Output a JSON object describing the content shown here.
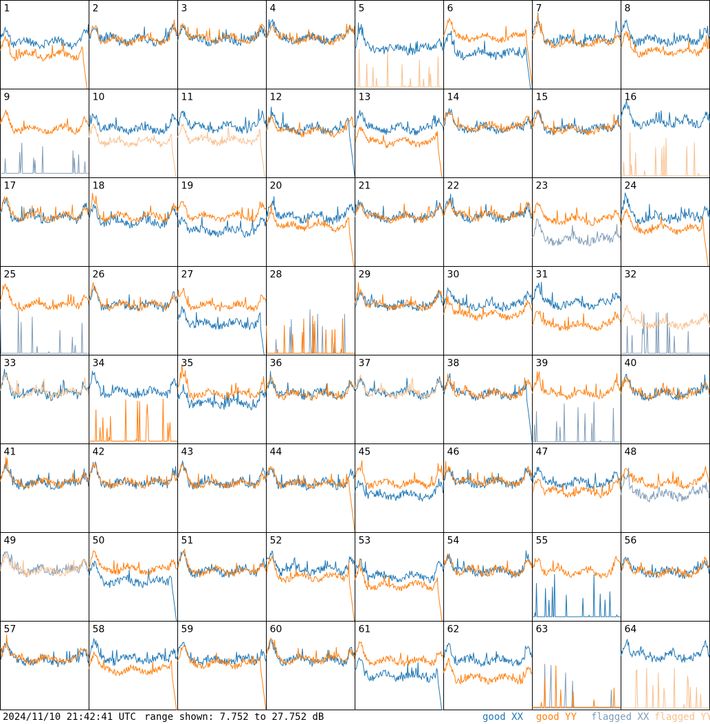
{
  "footer": {
    "timestamp": "2024/11/10 21:42:41 UTC",
    "range_text": "range shown: 7.752 to 27.752 dB"
  },
  "legend": {
    "good_xx": "good XX",
    "good_yy": "good YY",
    "flagged_xx": "flagged XX",
    "flagged_yy": "flagged YY"
  },
  "colors": {
    "good_xx": "#1f77b4",
    "good_yy": "#ff7f0e",
    "flagged_xx": "#7f9bb7",
    "flagged_yy": "#f8c08e",
    "frame": "#000000"
  },
  "chart_data": {
    "type": "line",
    "title": "",
    "xlabel": "",
    "ylabel": "",
    "ylim_db": [
      7.752,
      27.752
    ],
    "grid_rows": 8,
    "grid_cols": 8,
    "panels": [
      {
        "label": "1",
        "xx": "good",
        "yy": "good",
        "xx_level": 0.52,
        "yy_level": 0.38,
        "xx_drop": false,
        "yy_drop": true
      },
      {
        "label": "2",
        "xx": "good",
        "yy": "good",
        "xx_level": 0.55,
        "yy_level": 0.55,
        "xx_drop": false,
        "yy_drop": false
      },
      {
        "label": "3",
        "xx": "good",
        "yy": "good",
        "xx_level": 0.55,
        "yy_level": 0.57,
        "xx_drop": false,
        "yy_drop": false
      },
      {
        "label": "4",
        "xx": "good",
        "yy": "good",
        "xx_level": 0.57,
        "yy_level": 0.56,
        "xx_drop": false,
        "yy_drop": false
      },
      {
        "label": "5",
        "xx": "good",
        "yy": "flagged",
        "xx_level": 0.45,
        "yy_level": 0.02,
        "xx_drop": false,
        "yy_drop": false
      },
      {
        "label": "6",
        "xx": "good",
        "yy": "good",
        "xx_level": 0.4,
        "yy_level": 0.58,
        "xx_drop": true,
        "yy_drop": true
      },
      {
        "label": "7",
        "xx": "good",
        "yy": "good",
        "xx_level": 0.55,
        "yy_level": 0.52,
        "xx_drop": false,
        "yy_drop": false
      },
      {
        "label": "8",
        "xx": "good",
        "yy": "good",
        "xx_level": 0.55,
        "yy_level": 0.42,
        "xx_drop": false,
        "yy_drop": false
      },
      {
        "label": "9",
        "xx": "flagged",
        "yy": "good",
        "xx_level": 0.05,
        "yy_level": 0.55,
        "xx_drop": false,
        "yy_drop": false
      },
      {
        "label": "10",
        "xx": "good",
        "yy": "flagged",
        "xx_level": 0.55,
        "yy_level": 0.4,
        "xx_drop": false,
        "yy_drop": true
      },
      {
        "label": "11",
        "xx": "good",
        "yy": "flagged",
        "xx_level": 0.57,
        "yy_level": 0.42,
        "xx_drop": false,
        "yy_drop": true
      },
      {
        "label": "12",
        "xx": "good",
        "yy": "good",
        "xx_level": 0.55,
        "yy_level": 0.52,
        "xx_drop": true,
        "yy_drop": false
      },
      {
        "label": "13",
        "xx": "good",
        "yy": "good",
        "xx_level": 0.55,
        "yy_level": 0.4,
        "xx_drop": false,
        "yy_drop": true
      },
      {
        "label": "14",
        "xx": "good",
        "yy": "good",
        "xx_level": 0.56,
        "yy_level": 0.57,
        "xx_drop": false,
        "yy_drop": false
      },
      {
        "label": "15",
        "xx": "good",
        "yy": "good",
        "xx_level": 0.55,
        "yy_level": 0.54,
        "xx_drop": false,
        "yy_drop": false
      },
      {
        "label": "16",
        "xx": "good",
        "yy": "flagged",
        "xx_level": 0.62,
        "yy_level": 0.02,
        "xx_drop": false,
        "yy_drop": false
      },
      {
        "label": "17",
        "xx": "good",
        "yy": "good",
        "xx_level": 0.55,
        "yy_level": 0.56,
        "xx_drop": false,
        "yy_drop": false
      },
      {
        "label": "18",
        "xx": "good",
        "yy": "good",
        "xx_level": 0.5,
        "yy_level": 0.56,
        "xx_drop": false,
        "yy_drop": false
      },
      {
        "label": "19",
        "xx": "good",
        "yy": "good",
        "xx_level": 0.4,
        "yy_level": 0.56,
        "xx_drop": false,
        "yy_drop": false
      },
      {
        "label": "20",
        "xx": "good",
        "yy": "good",
        "xx_level": 0.55,
        "yy_level": 0.45,
        "xx_drop": false,
        "yy_drop": true
      },
      {
        "label": "21",
        "xx": "good",
        "yy": "good",
        "xx_level": 0.56,
        "yy_level": 0.55,
        "xx_drop": false,
        "yy_drop": false
      },
      {
        "label": "22",
        "xx": "good",
        "yy": "good",
        "xx_level": 0.56,
        "yy_level": 0.57,
        "xx_drop": false,
        "yy_drop": false
      },
      {
        "label": "23",
        "xx": "flagged",
        "yy": "good",
        "xx_level": 0.3,
        "yy_level": 0.52,
        "xx_drop": false,
        "yy_drop": false
      },
      {
        "label": "24",
        "xx": "good",
        "yy": "good",
        "xx_level": 0.55,
        "yy_level": 0.42,
        "xx_drop": false,
        "yy_drop": true
      },
      {
        "label": "25",
        "xx": "flagged",
        "yy": "good",
        "xx_level": 0.02,
        "yy_level": 0.56,
        "xx_drop": false,
        "yy_drop": false
      },
      {
        "label": "26",
        "xx": "good",
        "yy": "good",
        "xx_level": 0.56,
        "yy_level": 0.56,
        "xx_drop": false,
        "yy_drop": false
      },
      {
        "label": "27",
        "xx": "good",
        "yy": "good",
        "xx_level": 0.35,
        "yy_level": 0.55,
        "xx_drop": true,
        "yy_drop": false
      },
      {
        "label": "28",
        "xx": "flagged",
        "yy": "good",
        "xx_level": 0.02,
        "yy_level": 0.02,
        "xx_drop": false,
        "yy_drop": false
      },
      {
        "label": "29",
        "xx": "good",
        "yy": "good",
        "xx_level": 0.56,
        "yy_level": 0.56,
        "xx_drop": false,
        "yy_drop": false
      },
      {
        "label": "30",
        "xx": "good",
        "yy": "good",
        "xx_level": 0.56,
        "yy_level": 0.45,
        "xx_drop": false,
        "yy_drop": false
      },
      {
        "label": "31",
        "xx": "good",
        "yy": "good",
        "xx_level": 0.58,
        "yy_level": 0.33,
        "xx_drop": false,
        "yy_drop": false
      },
      {
        "label": "32",
        "xx": "flagged",
        "yy": "flagged",
        "xx_level": 0.02,
        "yy_level": 0.35,
        "xx_drop": false,
        "yy_drop": false
      },
      {
        "label": "33",
        "xx": "good",
        "yy": "flagged",
        "xx_level": 0.56,
        "yy_level": 0.57,
        "xx_drop": false,
        "yy_drop": false
      },
      {
        "label": "34",
        "xx": "good",
        "yy": "good",
        "xx_level": 0.58,
        "yy_level": 0.03,
        "xx_drop": false,
        "yy_drop": false
      },
      {
        "label": "35",
        "xx": "good",
        "yy": "good",
        "xx_level": 0.45,
        "yy_level": 0.56,
        "xx_drop": false,
        "yy_drop": false
      },
      {
        "label": "36",
        "xx": "good",
        "yy": "good",
        "xx_level": 0.56,
        "yy_level": 0.55,
        "xx_drop": false,
        "yy_drop": false
      },
      {
        "label": "37",
        "xx": "good",
        "yy": "flagged",
        "xx_level": 0.57,
        "yy_level": 0.57,
        "xx_drop": false,
        "yy_drop": false
      },
      {
        "label": "38",
        "xx": "good",
        "yy": "good",
        "xx_level": 0.56,
        "yy_level": 0.56,
        "xx_drop": true,
        "yy_drop": false
      },
      {
        "label": "39",
        "xx": "flagged",
        "yy": "good",
        "xx_level": 0.02,
        "yy_level": 0.56,
        "xx_drop": false,
        "yy_drop": false
      },
      {
        "label": "40",
        "xx": "good",
        "yy": "good",
        "xx_level": 0.56,
        "yy_level": 0.56,
        "xx_drop": false,
        "yy_drop": false
      },
      {
        "label": "41",
        "xx": "good",
        "yy": "good",
        "xx_level": 0.55,
        "yy_level": 0.56,
        "xx_drop": false,
        "yy_drop": false
      },
      {
        "label": "42",
        "xx": "good",
        "yy": "good",
        "xx_level": 0.56,
        "yy_level": 0.56,
        "xx_drop": false,
        "yy_drop": false
      },
      {
        "label": "43",
        "xx": "good",
        "yy": "good",
        "xx_level": 0.56,
        "yy_level": 0.55,
        "xx_drop": false,
        "yy_drop": false
      },
      {
        "label": "44",
        "xx": "good",
        "yy": "good",
        "xx_level": 0.55,
        "yy_level": 0.55,
        "xx_drop": false,
        "yy_drop": true
      },
      {
        "label": "45",
        "xx": "good",
        "yy": "good",
        "xx_level": 0.42,
        "yy_level": 0.55,
        "xx_drop": false,
        "yy_drop": false
      },
      {
        "label": "46",
        "xx": "good",
        "yy": "good",
        "xx_level": 0.56,
        "yy_level": 0.57,
        "xx_drop": false,
        "yy_drop": false
      },
      {
        "label": "47",
        "xx": "good",
        "yy": "good",
        "xx_level": 0.55,
        "yy_level": 0.45,
        "xx_drop": false,
        "yy_drop": false
      },
      {
        "label": "48",
        "xx": "flagged",
        "yy": "good",
        "xx_level": 0.42,
        "yy_level": 0.55,
        "xx_drop": false,
        "yy_drop": false
      },
      {
        "label": "49",
        "xx": "flagged",
        "yy": "flagged",
        "xx_level": 0.57,
        "yy_level": 0.56,
        "xx_drop": false,
        "yy_drop": false
      },
      {
        "label": "50",
        "xx": "good",
        "yy": "good",
        "xx_level": 0.45,
        "yy_level": 0.58,
        "xx_drop": true,
        "yy_drop": false
      },
      {
        "label": "51",
        "xx": "good",
        "yy": "good",
        "xx_level": 0.56,
        "yy_level": 0.56,
        "xx_drop": false,
        "yy_drop": false
      },
      {
        "label": "52",
        "xx": "good",
        "yy": "good",
        "xx_level": 0.58,
        "yy_level": 0.5,
        "xx_drop": false,
        "yy_drop": true
      },
      {
        "label": "53",
        "xx": "good",
        "yy": "good",
        "xx_level": 0.5,
        "yy_level": 0.4,
        "xx_drop": false,
        "yy_drop": true
      },
      {
        "label": "54",
        "xx": "good",
        "yy": "good",
        "xx_level": 0.56,
        "yy_level": 0.56,
        "xx_drop": false,
        "yy_drop": false
      },
      {
        "label": "55",
        "xx": "good",
        "yy": "good",
        "xx_level": 0.05,
        "yy_level": 0.55,
        "xx_drop": false,
        "yy_drop": false
      },
      {
        "label": "56",
        "xx": "good",
        "yy": "good",
        "xx_level": 0.55,
        "yy_level": 0.55,
        "xx_drop": false,
        "yy_drop": false
      },
      {
        "label": "57",
        "xx": "good",
        "yy": "good",
        "xx_level": 0.55,
        "yy_level": 0.57,
        "xx_drop": false,
        "yy_drop": false
      },
      {
        "label": "58",
        "xx": "good",
        "yy": "good",
        "xx_level": 0.57,
        "yy_level": 0.45,
        "xx_drop": false,
        "yy_drop": true
      },
      {
        "label": "59",
        "xx": "good",
        "yy": "good",
        "xx_level": 0.56,
        "yy_level": 0.52,
        "xx_drop": false,
        "yy_drop": true
      },
      {
        "label": "60",
        "xx": "good",
        "yy": "good",
        "xx_level": 0.56,
        "yy_level": 0.57,
        "xx_drop": false,
        "yy_drop": false
      },
      {
        "label": "61",
        "xx": "good",
        "yy": "good",
        "xx_level": 0.38,
        "yy_level": 0.55,
        "xx_drop": true,
        "yy_drop": false
      },
      {
        "label": "62",
        "xx": "good",
        "yy": "good",
        "xx_level": 0.55,
        "yy_level": 0.35,
        "xx_drop": false,
        "yy_drop": false
      },
      {
        "label": "63",
        "xx": "flagged",
        "yy": "good",
        "xx_level": 0.02,
        "yy_level": 0.03,
        "xx_drop": false,
        "yy_drop": false
      },
      {
        "label": "64",
        "xx": "good",
        "yy": "flagged",
        "xx_level": 0.6,
        "yy_level": 0.02,
        "xx_drop": false,
        "yy_drop": false
      }
    ]
  }
}
